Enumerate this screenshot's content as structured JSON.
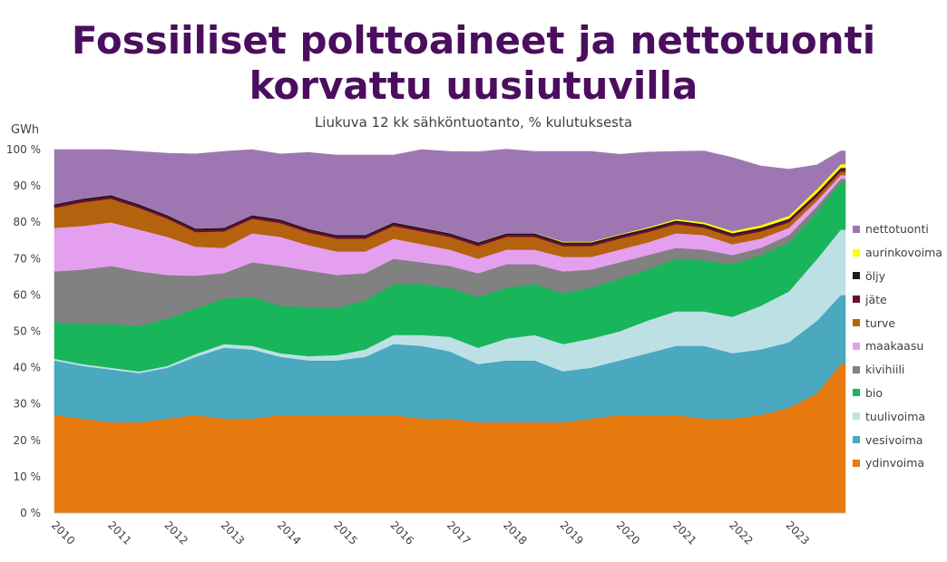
{
  "title_line1": "Fossiiliset polttoaineet ja nettotuonti",
  "title_line2": "korvattu uusiutuvilla",
  "subtitle": "Liukuva 12 kk sähköntuotanto, % kulutuksesta",
  "unit_label": "GWh",
  "chart_data": {
    "type": "area",
    "stacked": true,
    "x": [
      "2010-01",
      "2010-07",
      "2011-01",
      "2011-07",
      "2012-01",
      "2012-07",
      "2013-01",
      "2013-07",
      "2014-01",
      "2014-07",
      "2015-01",
      "2015-07",
      "2016-01",
      "2016-07",
      "2017-01",
      "2017-07",
      "2018-01",
      "2018-07",
      "2019-01",
      "2019-07",
      "2020-01",
      "2020-07",
      "2021-01",
      "2021-07",
      "2022-01",
      "2022-07",
      "2023-01",
      "2023-07",
      "2023-12"
    ],
    "x_tick_labels": [
      "2010",
      "2011",
      "2012",
      "2013",
      "2014",
      "2015",
      "2016",
      "2017",
      "2018",
      "2019",
      "2020",
      "2021",
      "2022",
      "2023"
    ],
    "ylim": [
      0,
      100
    ],
    "y_ticks": [
      "0 %",
      "10 %",
      "20 %",
      "30 %",
      "40 %",
      "50 %",
      "60 %",
      "70 %",
      "80 %",
      "90 %",
      "100 %"
    ],
    "grid": false,
    "legend_position": "right",
    "series": [
      {
        "name": "ydinvoima",
        "color": "#e87b10",
        "values": [
          27,
          26,
          25,
          25,
          26,
          27,
          26,
          26,
          27,
          27,
          27,
          27,
          27,
          26,
          26,
          25,
          25,
          25,
          25,
          26,
          27,
          27,
          27,
          26,
          26,
          27,
          29,
          33,
          41
        ]
      },
      {
        "name": "vesivoima",
        "color": "#4aa8bf",
        "values": [
          15,
          14.5,
          14.5,
          13.5,
          14,
          16,
          19.5,
          19,
          16,
          15,
          15,
          16,
          19.5,
          20,
          18.5,
          16,
          17,
          17,
          14,
          14,
          15,
          17,
          19,
          20,
          18,
          18,
          18,
          20,
          19
        ]
      },
      {
        "name": "tuulivoima",
        "color": "#bde0e5",
        "values": [
          0.5,
          0.5,
          0.5,
          0.5,
          0.5,
          0.8,
          1,
          1,
          1,
          1.2,
          1.5,
          2,
          2.5,
          3,
          4,
          4.5,
          6,
          7,
          7.5,
          8,
          8,
          9,
          9.5,
          9.5,
          10,
          12,
          14,
          17,
          18
        ]
      },
      {
        "name": "bio",
        "color": "#18b55a",
        "values": [
          10,
          11,
          12,
          12.5,
          13,
          12.5,
          12.5,
          13.5,
          13,
          13.5,
          13,
          13.5,
          14,
          14,
          13.5,
          14,
          14,
          14,
          14,
          14,
          14.5,
          14,
          14.5,
          14,
          14.5,
          14,
          13.5,
          13,
          13
        ]
      },
      {
        "name": "kivihiili",
        "color": "#818181",
        "values": [
          14,
          15,
          16,
          15,
          12,
          9,
          7,
          9.5,
          11,
          10,
          9,
          7.5,
          7,
          6,
          6,
          6.5,
          6.5,
          5.5,
          6,
          5,
          4.5,
          4,
          3,
          3,
          2.5,
          2,
          2,
          1.5,
          1
        ]
      },
      {
        "name": "maakaasu",
        "color": "#e4a0ee",
        "values": [
          12,
          12,
          12,
          11.5,
          10.5,
          8,
          7,
          8,
          8,
          7,
          6.5,
          6,
          5.5,
          5,
          4.5,
          4,
          4,
          4,
          4,
          3.5,
          3.5,
          3.5,
          4,
          4,
          3,
          2.5,
          2,
          1.5,
          1
        ]
      },
      {
        "name": "turve",
        "color": "#b5620e",
        "values": [
          5.5,
          6.5,
          6.5,
          6,
          5,
          4,
          4.5,
          4,
          3.8,
          3.5,
          3.5,
          3.5,
          3.5,
          3.5,
          3.5,
          3.5,
          3.5,
          3.5,
          3,
          3,
          3,
          2.8,
          2.5,
          2,
          2,
          2,
          1.5,
          1.2,
          1
        ]
      },
      {
        "name": "jäte",
        "color": "#6e0c38",
        "values": [
          0.6,
          0.6,
          0.6,
          0.6,
          0.6,
          0.6,
          0.6,
          0.6,
          0.6,
          0.6,
          0.6,
          0.6,
          0.6,
          0.6,
          0.6,
          0.6,
          0.6,
          0.6,
          0.6,
          0.6,
          0.6,
          0.6,
          0.6,
          0.6,
          0.6,
          0.6,
          0.6,
          0.6,
          0.6
        ]
      },
      {
        "name": "öljy",
        "color": "#1a1a1a",
        "values": [
          0.4,
          0.4,
          0.4,
          0.4,
          0.4,
          0.4,
          0.4,
          0.4,
          0.4,
          0.4,
          0.4,
          0.4,
          0.4,
          0.4,
          0.4,
          0.4,
          0.4,
          0.4,
          0.4,
          0.4,
          0.4,
          0.4,
          0.4,
          0.4,
          0.4,
          0.4,
          0.4,
          0.4,
          0.4
        ]
      },
      {
        "name": "aurinkovoima",
        "color": "#ffff00",
        "values": [
          0,
          0,
          0,
          0,
          0,
          0,
          0,
          0,
          0,
          0,
          0,
          0,
          0,
          0,
          0,
          0,
          0.1,
          0.1,
          0.2,
          0.2,
          0.2,
          0.3,
          0.4,
          0.5,
          0.6,
          0.7,
          0.8,
          1,
          1
        ]
      },
      {
        "name": "nettotuonti",
        "color": "#9e77b2",
        "values": [
          15,
          13.5,
          12.5,
          14.5,
          17,
          20.5,
          21,
          18,
          18,
          21,
          22,
          22,
          18.5,
          21.5,
          22.5,
          24.9,
          23,
          22.4,
          24.8,
          24.8,
          22,
          20.7,
          18.6,
          19.6,
          20.2,
          16.3,
          12.8,
          6.6,
          3.6
        ]
      }
    ]
  }
}
